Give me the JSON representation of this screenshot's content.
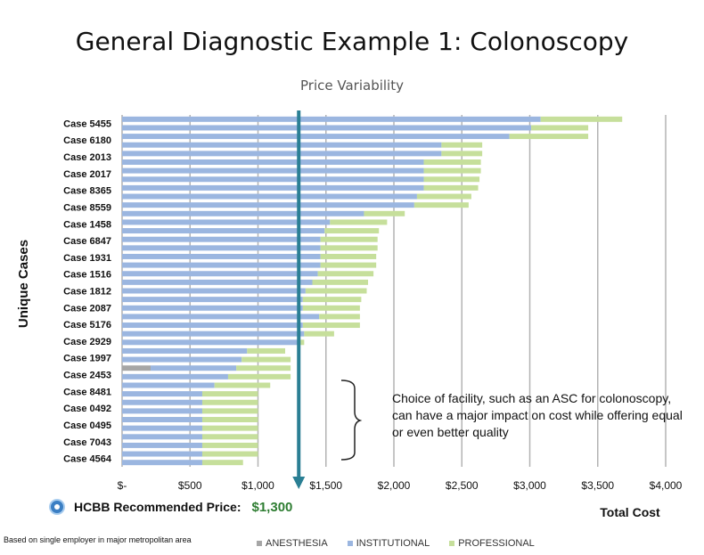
{
  "title": "General Diagnostic Example 1: Colonoscopy",
  "subtitle": "Price Variability",
  "recommended": {
    "label": "HCBB Recommended Price:",
    "price": "$1,300",
    "value": 1300
  },
  "footnote": "Based on single employer in major metropolitan area",
  "callout": "Choice of facility, such as an ASC for colonoscopy, can have a major impact on cost while offering equal or even  better quality",
  "colors": {
    "anesthesia": "#a6a6a6",
    "institutional": "#9bb6e0",
    "professional": "#c6df9b",
    "marker": "#2a7f94",
    "grid": "#b3b3b3"
  },
  "chart_data": {
    "type": "bar",
    "orientation": "horizontal",
    "stacked": true,
    "xlabel": "Total Cost",
    "ylabel": "Unique Cases",
    "xlim": [
      0,
      4000
    ],
    "xticks": [
      0,
      500,
      1000,
      1500,
      2000,
      2500,
      3000,
      3500,
      4000
    ],
    "xtick_labels": [
      "$-",
      "$500",
      "$1,000",
      "$1,500",
      "$2,000",
      "$2,500",
      "$3,000",
      "$3,500",
      "$4,000"
    ],
    "grid": true,
    "legend_position": "bottom",
    "row_labels": [
      "Case 5455",
      "Case 6180",
      "Case 2013",
      "Case 2017",
      "Case 8365",
      "Case 8559",
      "Case 1458",
      "Case 6847",
      "Case 1931",
      "Case 1516",
      "Case 1812",
      "Case 2087",
      "Case 5176",
      "Case 2929",
      "Case 1997",
      "Case 2453",
      "Case 8481",
      "Case 0492",
      "Case 0495",
      "Case 7043",
      "Case 4564"
    ],
    "bars": [
      {
        "anesthesia": 0,
        "institutional": 3080,
        "professional": 600
      },
      {
        "anesthesia": 0,
        "institutional": 3010,
        "professional": 420
      },
      {
        "anesthesia": 0,
        "institutional": 2850,
        "professional": 580
      },
      {
        "anesthesia": 0,
        "institutional": 2350,
        "professional": 300
      },
      {
        "anesthesia": 0,
        "institutional": 2350,
        "professional": 300
      },
      {
        "anesthesia": 0,
        "institutional": 2220,
        "professional": 420
      },
      {
        "anesthesia": 0,
        "institutional": 2220,
        "professional": 420
      },
      {
        "anesthesia": 0,
        "institutional": 2220,
        "professional": 410
      },
      {
        "anesthesia": 0,
        "institutional": 2220,
        "professional": 400
      },
      {
        "anesthesia": 0,
        "institutional": 2170,
        "professional": 400
      },
      {
        "anesthesia": 0,
        "institutional": 2150,
        "professional": 400
      },
      {
        "anesthesia": 0,
        "institutional": 1780,
        "professional": 300
      },
      {
        "anesthesia": 0,
        "institutional": 1530,
        "professional": 420
      },
      {
        "anesthesia": 0,
        "institutional": 1490,
        "professional": 400
      },
      {
        "anesthesia": 0,
        "institutional": 1460,
        "professional": 420
      },
      {
        "anesthesia": 0,
        "institutional": 1460,
        "professional": 420
      },
      {
        "anesthesia": 0,
        "institutional": 1460,
        "professional": 410
      },
      {
        "anesthesia": 0,
        "institutional": 1460,
        "professional": 410
      },
      {
        "anesthesia": 0,
        "institutional": 1440,
        "professional": 410
      },
      {
        "anesthesia": 0,
        "institutional": 1400,
        "professional": 410
      },
      {
        "anesthesia": 0,
        "institutional": 1350,
        "professional": 450
      },
      {
        "anesthesia": 0,
        "institutional": 1330,
        "professional": 430
      },
      {
        "anesthesia": 0,
        "institutional": 1330,
        "professional": 420
      },
      {
        "anesthesia": 0,
        "institutional": 1450,
        "professional": 300
      },
      {
        "anesthesia": 0,
        "institutional": 1330,
        "professional": 420
      },
      {
        "anesthesia": 0,
        "institutional": 1340,
        "professional": 220
      },
      {
        "anesthesia": 0,
        "institutional": 1290,
        "professional": 50
      },
      {
        "anesthesia": 0,
        "institutional": 920,
        "professional": 280
      },
      {
        "anesthesia": 0,
        "institutional": 880,
        "professional": 360
      },
      {
        "anesthesia": 210,
        "institutional": 630,
        "professional": 400
      },
      {
        "anesthesia": 0,
        "institutional": 780,
        "professional": 460
      },
      {
        "anesthesia": 0,
        "institutional": 680,
        "professional": 410
      },
      {
        "anesthesia": 0,
        "institutional": 590,
        "professional": 410
      },
      {
        "anesthesia": 0,
        "institutional": 590,
        "professional": 410
      },
      {
        "anesthesia": 0,
        "institutional": 590,
        "professional": 410
      },
      {
        "anesthesia": 0,
        "institutional": 590,
        "professional": 410
      },
      {
        "anesthesia": 0,
        "institutional": 590,
        "professional": 410
      },
      {
        "anesthesia": 0,
        "institutional": 590,
        "professional": 410
      },
      {
        "anesthesia": 0,
        "institutional": 590,
        "professional": 410
      },
      {
        "anesthesia": 0,
        "institutional": 590,
        "professional": 410
      },
      {
        "anesthesia": 0,
        "institutional": 590,
        "professional": 300
      }
    ],
    "series": [
      {
        "name": "ANESTHESIA",
        "key": "anesthesia"
      },
      {
        "name": "INSTITUTIONAL",
        "key": "institutional"
      },
      {
        "name": "PROFESSIONAL",
        "key": "professional"
      }
    ]
  }
}
